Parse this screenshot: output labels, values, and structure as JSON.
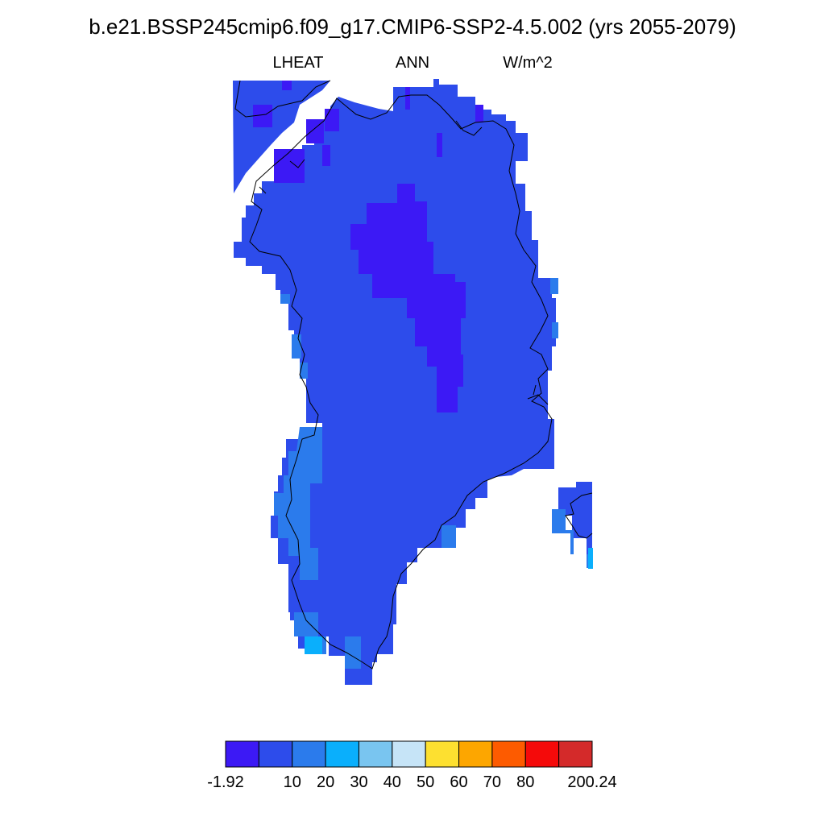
{
  "header": {
    "title": "b.e21.BSSP245cmip6.f09_g17.CMIP6-SSP2-4.5.002 (yrs 2055-2079)",
    "variable": "LHEAT",
    "season": "ANN",
    "units": "W/m^2"
  },
  "map": {
    "region": "Greenland",
    "projection": "polar stereographic (north)",
    "coastline_color": "#000000",
    "colors_present": [
      "#3c19f5",
      "#2d4ceb",
      "#2b7bec",
      "#0aaffc"
    ]
  },
  "colorbar": {
    "colors": [
      "#3c19f5",
      "#2d4ceb",
      "#2b7bec",
      "#0aaffc",
      "#79c5f0",
      "#c6e4f7",
      "#fde030",
      "#fda600",
      "#fd5b00",
      "#f50a0a",
      "#d42a2a"
    ],
    "labels": [
      "-1.92",
      "10",
      "20",
      "30",
      "40",
      "50",
      "60",
      "70",
      "80",
      "200.24"
    ]
  }
}
